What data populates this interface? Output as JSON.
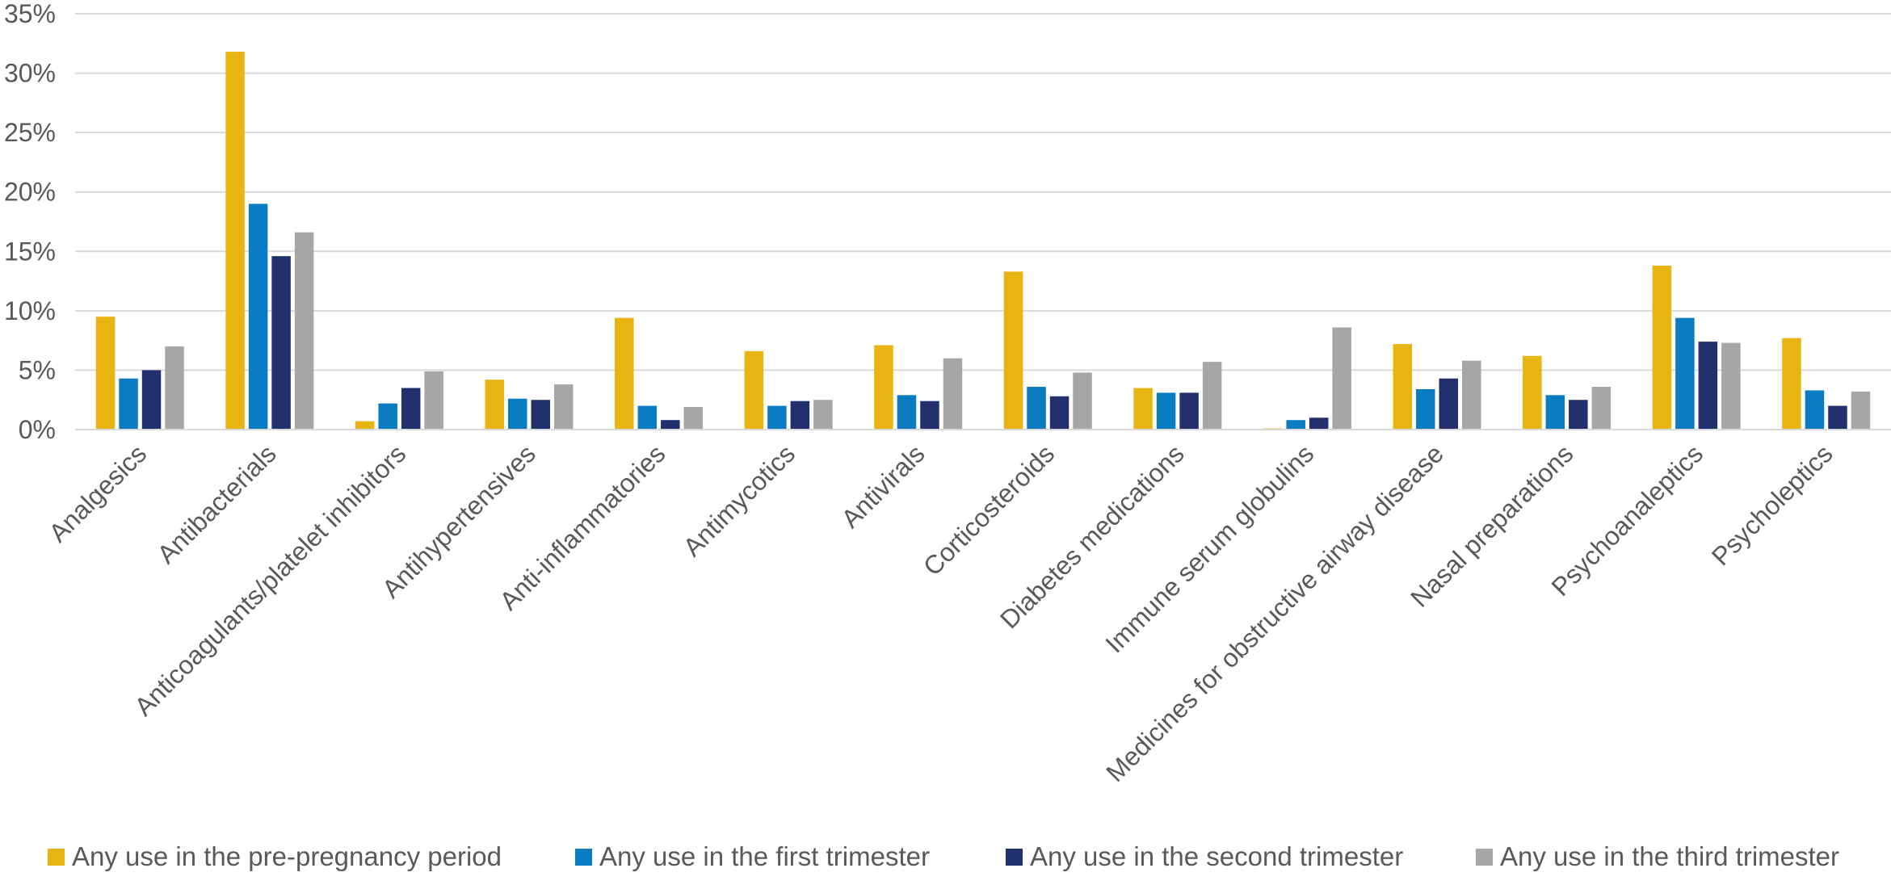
{
  "chart_data": {
    "type": "bar",
    "title": "",
    "xlabel": "",
    "ylabel": "",
    "ylim": [
      0,
      35
    ],
    "y_ticks": [
      "0%",
      "5%",
      "10%",
      "15%",
      "20%",
      "25%",
      "30%",
      "35%"
    ],
    "y_tick_values": [
      0,
      5,
      10,
      15,
      20,
      25,
      30,
      35
    ],
    "grid": true,
    "legend_position": "bottom",
    "categories": [
      "Analgesics",
      "Antibacterials",
      "Anticoagulants/platelet inhibitors",
      "Antihypertensives",
      "Anti-inflammatories",
      "Antimycotics",
      "Antivirals",
      "Corticosteroids",
      "Diabetes medications",
      "Immune serum globulins",
      "Medicines for obstructive airway disease",
      "Nasal preparations",
      "Psychoanaleptics",
      "Psycholeptics"
    ],
    "series": [
      {
        "name": "Any use in the pre-pregnancy period",
        "color": "#E8B412",
        "values": [
          9.5,
          31.8,
          0.7,
          4.2,
          9.4,
          6.6,
          7.1,
          13.3,
          3.5,
          0.1,
          7.2,
          6.2,
          13.8,
          7.7
        ]
      },
      {
        "name": "Any use in the first trimester",
        "color": "#0A7DC2",
        "values": [
          4.3,
          19.0,
          2.2,
          2.6,
          2.0,
          2.0,
          2.9,
          3.6,
          3.1,
          0.8,
          3.4,
          2.9,
          9.4,
          3.3
        ]
      },
      {
        "name": "Any use in the second trimester",
        "color": "#23306E",
        "values": [
          5.0,
          14.6,
          3.5,
          2.5,
          0.8,
          2.4,
          2.4,
          2.8,
          3.1,
          1.0,
          4.3,
          2.5,
          7.4,
          2.0
        ]
      },
      {
        "name": "Any use in the third trimester",
        "color": "#A6A6A6",
        "values": [
          7.0,
          16.6,
          4.9,
          3.8,
          1.9,
          2.5,
          6.0,
          4.8,
          5.7,
          8.6,
          5.8,
          3.6,
          7.3,
          3.2
        ]
      }
    ]
  }
}
